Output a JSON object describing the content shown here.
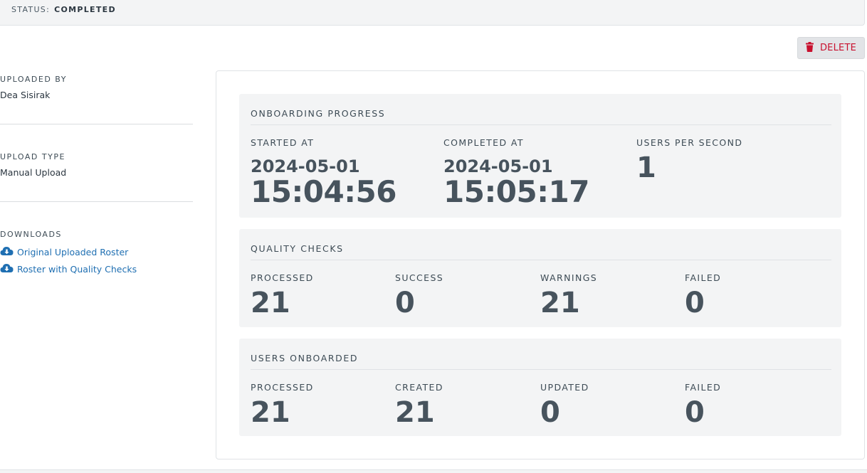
{
  "status": {
    "label": "STATUS:",
    "value": "COMPLETED"
  },
  "actions": {
    "delete_label": "DELETE"
  },
  "sidebar": {
    "uploaded_by": {
      "label": "UPLOADED BY",
      "value": "Dea Sisirak"
    },
    "upload_type": {
      "label": "UPLOAD TYPE",
      "value": "Manual Upload"
    },
    "downloads": {
      "label": "DOWNLOADS",
      "links": [
        {
          "label": "Original Uploaded Roster",
          "icon": "cloud-download-icon"
        },
        {
          "label": "Roster with Quality Checks",
          "icon": "cloud-download-icon"
        }
      ]
    }
  },
  "onboarding": {
    "title": "ONBOARDING PROGRESS",
    "started": {
      "label": "STARTED AT",
      "date": "2024-05-01",
      "time": "15:04:56"
    },
    "completed": {
      "label": "COMPLETED AT",
      "date": "2024-05-01",
      "time": "15:05:17"
    },
    "rate": {
      "label": "USERS PER SECOND",
      "value": "1"
    }
  },
  "quality": {
    "title": "QUALITY CHECKS",
    "stats": [
      {
        "label": "PROCESSED",
        "value": "21"
      },
      {
        "label": "SUCCESS",
        "value": "0"
      },
      {
        "label": "WARNINGS",
        "value": "21"
      },
      {
        "label": "FAILED",
        "value": "0"
      }
    ]
  },
  "users": {
    "title": "USERS ONBOARDED",
    "stats": [
      {
        "label": "PROCESSED",
        "value": "21"
      },
      {
        "label": "CREATED",
        "value": "21"
      },
      {
        "label": "UPDATED",
        "value": "0"
      },
      {
        "label": "FAILED",
        "value": "0"
      }
    ]
  },
  "colors": {
    "accent_link": "#1f6fb2",
    "danger": "#c8102e",
    "card_bg": "#f3f4f5"
  }
}
